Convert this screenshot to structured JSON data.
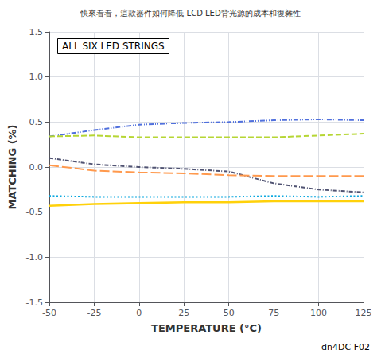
{
  "chart_data": {
    "type": "line",
    "title": "ALL SIX LED STRINGS",
    "subtitle": "快來看看，這款器件如何降低 LCD LED背光源的成本和復雜性",
    "annotation": "dn4DC F02",
    "xlabel": "TEMPERATURE (°C)",
    "ylabel": "MATCHING (%)",
    "x": [
      -50,
      -25,
      0,
      25,
      50,
      75,
      100,
      125
    ],
    "series": [
      {
        "values": [
          0.34,
          0.41,
          0.47,
          0.49,
          0.5,
          0.52,
          0.53,
          0.52
        ],
        "line_style": "dashdotdot"
      },
      {
        "values": [
          0.34,
          0.35,
          0.33,
          0.33,
          0.33,
          0.33,
          0.35,
          0.37
        ],
        "line_style": "dashed"
      },
      {
        "values": [
          0.1,
          0.03,
          0.0,
          -0.02,
          -0.05,
          -0.18,
          -0.25,
          -0.28
        ],
        "line_style": "dashdot"
      },
      {
        "values": [
          0.02,
          -0.04,
          -0.06,
          -0.07,
          -0.09,
          -0.1,
          -0.1,
          -0.1
        ],
        "line_style": "longdash"
      },
      {
        "values": [
          -0.32,
          -0.33,
          -0.33,
          -0.33,
          -0.33,
          -0.32,
          -0.33,
          -0.32
        ],
        "line_style": "dotted"
      },
      {
        "values": [
          -0.43,
          -0.41,
          -0.4,
          -0.39,
          -0.39,
          -0.38,
          -0.38,
          -0.38
        ],
        "line_style": "solid"
      }
    ],
    "xlim": [
      -50,
      125
    ],
    "xticks": [
      -50,
      -25,
      0,
      25,
      50,
      75,
      100,
      125
    ],
    "ylim": [
      -1.5,
      1.5
    ],
    "yticks": [
      -1.5,
      {
        "value": -1.0,
        "label": "-1.0"
      },
      -0.5,
      {
        "value": 0.0,
        "label": "0.0"
      },
      0.5,
      {
        "value": 1.0,
        "label": "1.0"
      },
      1.5
    ],
    "grid": true
  }
}
